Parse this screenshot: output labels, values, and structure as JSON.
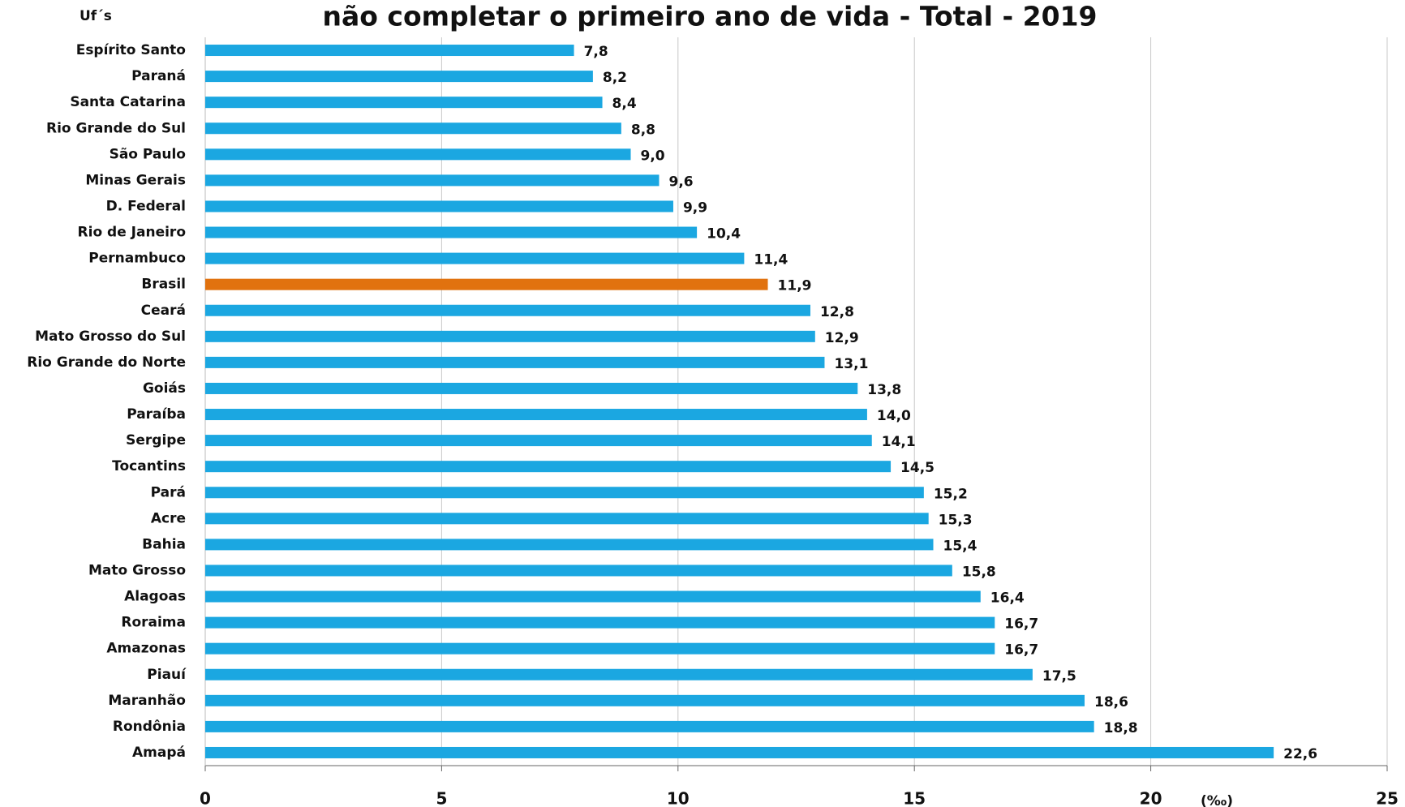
{
  "chart_data": {
    "type": "bar",
    "orientation": "horizontal",
    "title": "não completar o primeiro ano de vida - Total - 2019",
    "y_label": "Uf´s",
    "x_label": "(‰)",
    "categories": [
      "Espírito Santo",
      "Paraná",
      "Santa Catarina",
      "Rio Grande do Sul",
      "São Paulo",
      "Minas Gerais",
      "D. Federal",
      "Rio de Janeiro",
      "Pernambuco",
      "Brasil",
      "Ceará",
      "Mato Grosso do Sul",
      "Rio Grande do Norte",
      "Goiás",
      "Paraíba",
      "Sergipe",
      "Tocantins",
      "Pará",
      "Acre",
      "Bahia",
      "Mato Grosso",
      "Alagoas",
      "Roraima",
      "Amazonas",
      "Piauí",
      "Maranhão",
      "Rondônia",
      "Amapá"
    ],
    "values": [
      7.8,
      8.2,
      8.4,
      8.8,
      9.0,
      9.6,
      9.9,
      10.4,
      11.4,
      11.9,
      12.8,
      12.9,
      13.1,
      13.8,
      14.0,
      14.1,
      14.5,
      15.2,
      15.3,
      15.4,
      15.8,
      16.4,
      16.7,
      16.7,
      17.5,
      18.6,
      18.8,
      22.6
    ],
    "value_labels": [
      "7,8",
      "8,2",
      "8,4",
      "8,8",
      "9,0",
      "9,6",
      "9,9",
      "10,4",
      "11,4",
      "11,9",
      "12,8",
      "12,9",
      "13,1",
      "13,8",
      "14,0",
      "14,1",
      "14,5",
      "15,2",
      "15,3",
      "15,4",
      "15,8",
      "16,4",
      "16,7",
      "16,7",
      "17,5",
      "18,6",
      "18,8",
      "22,6"
    ],
    "colors": [
      "#1ba7e1",
      "#1ba7e1",
      "#1ba7e1",
      "#1ba7e1",
      "#1ba7e1",
      "#1ba7e1",
      "#1ba7e1",
      "#1ba7e1",
      "#1ba7e1",
      "#e1720f",
      "#1ba7e1",
      "#1ba7e1",
      "#1ba7e1",
      "#1ba7e1",
      "#1ba7e1",
      "#1ba7e1",
      "#1ba7e1",
      "#1ba7e1",
      "#1ba7e1",
      "#1ba7e1",
      "#1ba7e1",
      "#1ba7e1",
      "#1ba7e1",
      "#1ba7e1",
      "#1ba7e1",
      "#1ba7e1",
      "#1ba7e1",
      "#1ba7e1"
    ],
    "xlim": [
      0,
      25
    ],
    "xticks": [
      0,
      5,
      10,
      15,
      20,
      25
    ],
    "grid": true
  }
}
